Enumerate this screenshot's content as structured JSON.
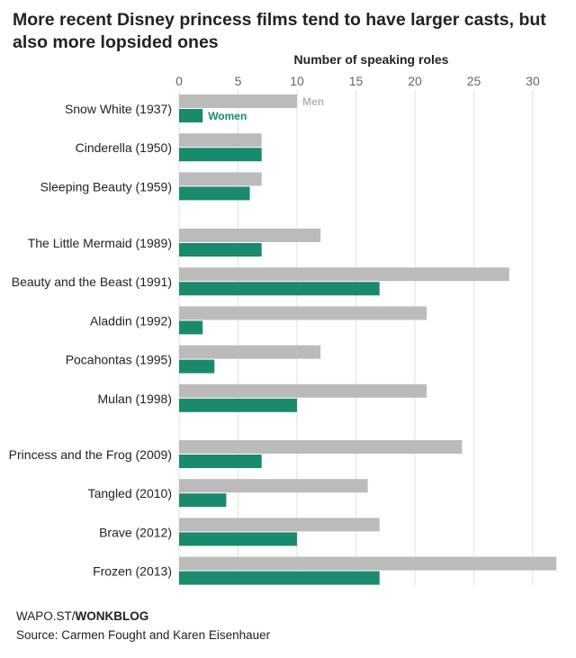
{
  "title": "More recent Disney princess films tend to have larger casts, but also more lopsided ones",
  "chart_data": {
    "type": "bar",
    "orientation": "horizontal",
    "xlabel": "Number of speaking roles",
    "xlim": [
      0,
      32
    ],
    "ticks": [
      0,
      5,
      10,
      15,
      20,
      25,
      30
    ],
    "grid": true,
    "categories": [
      "Snow White (1937)",
      "Cinderella (1950)",
      "Sleeping Beauty (1959)",
      "The Little Mermaid (1989)",
      "Beauty and the Beast (1991)",
      "Aladdin (1992)",
      "Pocahontas (1995)",
      "Mulan (1998)",
      "Princess and the Frog (2009)",
      "Tangled (2010)",
      "Brave (2012)",
      "Frozen (2013)"
    ],
    "groups": [
      0,
      0,
      0,
      1,
      1,
      1,
      1,
      1,
      2,
      2,
      2,
      2
    ],
    "series": [
      {
        "name": "Men",
        "color": "#bbbbbb",
        "values": [
          10,
          7,
          7,
          12,
          28,
          21,
          12,
          21,
          24,
          16,
          17,
          32
        ]
      },
      {
        "name": "Women",
        "color": "#1a8a6c",
        "values": [
          2,
          7,
          6,
          7,
          17,
          2,
          3,
          10,
          7,
          4,
          10,
          17
        ]
      }
    ],
    "legend": "inline on first bars"
  },
  "footer": {
    "brand_prefix": "WAPO.ST/",
    "brand": "WONKBLOG",
    "source": "Source: Carmen Fought and Karen Eisenhauer"
  }
}
